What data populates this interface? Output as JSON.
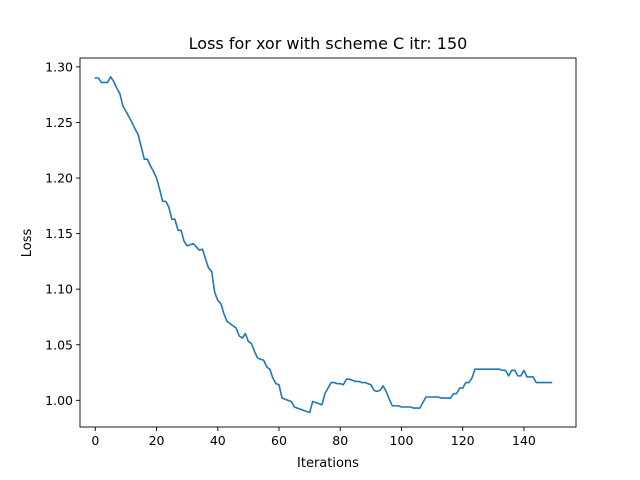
{
  "chart_data": {
    "type": "line",
    "title": "Loss for xor with scheme C itr: 150",
    "xlabel": "Iterations",
    "ylabel": "Loss",
    "xlim": [
      -5,
      157
    ],
    "ylim": [
      0.976,
      1.308
    ],
    "xticks": [
      0,
      20,
      40,
      60,
      80,
      100,
      120,
      140
    ],
    "yticks": [
      1.0,
      1.05,
      1.1,
      1.15,
      1.2,
      1.25,
      1.3
    ],
    "ytick_labels": [
      "1.00",
      "1.05",
      "1.10",
      "1.15",
      "1.20",
      "1.25",
      "1.30"
    ],
    "grid": false,
    "line_color": "#1f77b4",
    "series": [
      {
        "x": [
          0,
          1,
          2,
          3,
          4,
          5,
          6,
          7,
          8,
          9,
          10,
          11,
          12,
          13,
          14,
          15,
          16,
          17,
          18,
          19,
          20,
          21,
          22,
          23,
          24,
          25,
          26,
          27,
          28,
          29,
          30,
          31,
          32,
          33,
          34,
          35,
          36,
          37,
          38,
          39,
          40,
          41,
          42,
          43,
          44,
          45,
          46,
          47,
          48,
          49,
          50,
          51,
          52,
          53,
          54,
          55,
          56,
          57,
          58,
          59,
          60,
          61,
          62,
          63,
          64,
          65,
          66,
          67,
          68,
          69,
          70,
          71,
          72,
          73,
          74,
          75,
          76,
          77,
          78,
          79,
          80,
          81,
          82,
          83,
          84,
          85,
          86,
          87,
          88,
          89,
          90,
          91,
          92,
          93,
          94,
          95,
          96,
          97,
          98,
          99,
          100,
          101,
          102,
          103,
          104,
          105,
          106,
          107,
          108,
          109,
          110,
          111,
          112,
          113,
          114,
          115,
          116,
          117,
          118,
          119,
          120,
          121,
          122,
          123,
          124,
          125,
          126,
          127,
          128,
          129,
          130,
          131,
          132,
          133,
          134,
          135,
          136,
          137,
          138,
          139,
          140,
          141,
          142,
          143,
          144,
          145,
          146,
          147,
          148,
          149
        ],
        "values": [
          1.29,
          1.29,
          1.286,
          1.286,
          1.286,
          1.291,
          1.287,
          1.281,
          1.276,
          1.265,
          1.26,
          1.255,
          1.25,
          1.244,
          1.239,
          1.228,
          1.217,
          1.217,
          1.211,
          1.206,
          1.2,
          1.19,
          1.179,
          1.179,
          1.174,
          1.163,
          1.163,
          1.153,
          1.153,
          1.143,
          1.139,
          1.14,
          1.141,
          1.138,
          1.135,
          1.136,
          1.127,
          1.119,
          1.116,
          1.097,
          1.09,
          1.087,
          1.078,
          1.071,
          1.069,
          1.067,
          1.065,
          1.058,
          1.056,
          1.06,
          1.053,
          1.051,
          1.044,
          1.038,
          1.037,
          1.036,
          1.03,
          1.028,
          1.02,
          1.015,
          1.014,
          1.002,
          1.001,
          1.0,
          0.999,
          0.994,
          0.993,
          0.992,
          0.991,
          0.99,
          0.989,
          0.999,
          0.998,
          0.997,
          0.996,
          1.006,
          1.011,
          1.016,
          1.016,
          1.015,
          1.015,
          1.014,
          1.019,
          1.019,
          1.018,
          1.017,
          1.017,
          1.016,
          1.016,
          1.015,
          1.014,
          1.009,
          1.008,
          1.009,
          1.013,
          1.008,
          1.001,
          0.995,
          0.995,
          0.995,
          0.994,
          0.994,
          0.994,
          0.994,
          0.993,
          0.993,
          0.993,
          0.998,
          1.003,
          1.003,
          1.003,
          1.003,
          1.003,
          1.002,
          1.002,
          1.002,
          1.002,
          1.006,
          1.006,
          1.011,
          1.011,
          1.016,
          1.016,
          1.02,
          1.028,
          1.028,
          1.028,
          1.028,
          1.028,
          1.028,
          1.028,
          1.028,
          1.028,
          1.027,
          1.027,
          1.022,
          1.027,
          1.027,
          1.022,
          1.022,
          1.027,
          1.021,
          1.021,
          1.021,
          1.016,
          1.016,
          1.016,
          1.016,
          1.016,
          1.016
        ]
      }
    ]
  }
}
